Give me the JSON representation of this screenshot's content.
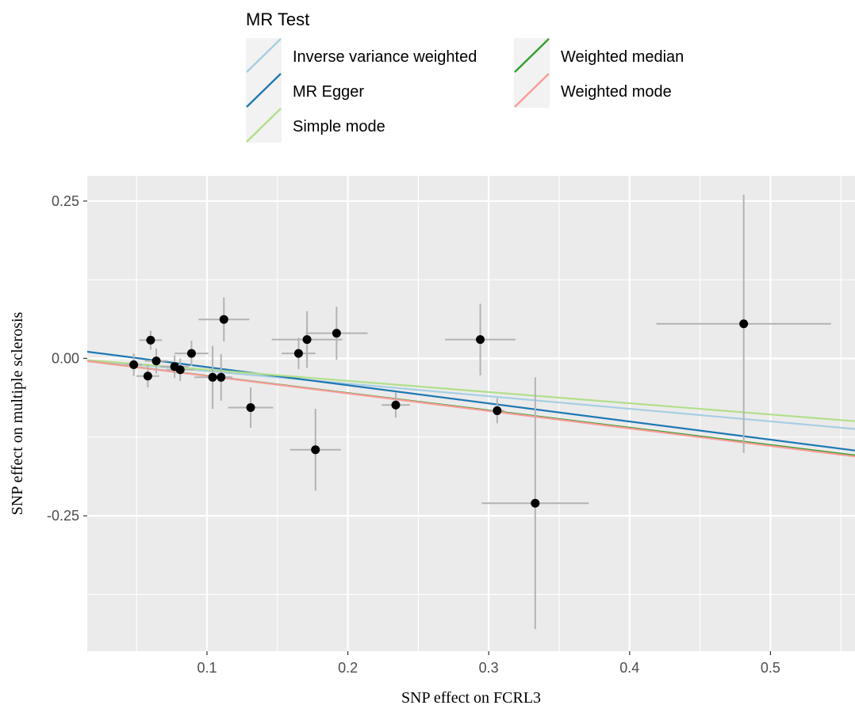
{
  "chart_data": {
    "type": "scatter",
    "xlabel": "SNP effect on FCRL3",
    "ylabel": "SNP effect on multiple sclerosis",
    "xlim": [
      0.015,
      0.56
    ],
    "ylim": [
      -0.465,
      0.29
    ],
    "x_ticks": [
      0.1,
      0.2,
      0.3,
      0.4,
      0.5
    ],
    "x_tick_labels": [
      "0.1",
      "0.2",
      "0.3",
      "0.4",
      "0.5"
    ],
    "y_ticks": [
      0.25,
      0.0,
      -0.25
    ],
    "y_tick_labels": [
      "0.25",
      "0.00",
      "-0.25"
    ],
    "grid": true,
    "legend": {
      "title": "MR Test",
      "position": "top",
      "items": [
        {
          "label": "Inverse variance weighted",
          "color": "#a6cee3"
        },
        {
          "label": "MR Egger",
          "color": "#1f78b4"
        },
        {
          "label": "Simple mode",
          "color": "#b2df8a"
        },
        {
          "label": "Weighted median",
          "color": "#33a02c"
        },
        {
          "label": "Weighted mode",
          "color": "#fb9a99"
        }
      ]
    },
    "points": [
      {
        "x": 0.048,
        "y": -0.01,
        "xerr": 0.006,
        "yerr": 0.018
      },
      {
        "x": 0.058,
        "y": -0.028,
        "xerr": 0.008,
        "yerr": 0.018
      },
      {
        "x": 0.06,
        "y": 0.029,
        "xerr": 0.008,
        "yerr": 0.015
      },
      {
        "x": 0.064,
        "y": -0.004,
        "xerr": 0.008,
        "yerr": 0.02
      },
      {
        "x": 0.077,
        "y": -0.013,
        "xerr": 0.01,
        "yerr": 0.018
      },
      {
        "x": 0.081,
        "y": -0.018,
        "xerr": 0.01,
        "yerr": 0.018
      },
      {
        "x": 0.089,
        "y": 0.008,
        "xerr": 0.012,
        "yerr": 0.02
      },
      {
        "x": 0.104,
        "y": -0.03,
        "xerr": 0.013,
        "yerr": 0.05
      },
      {
        "x": 0.11,
        "y": -0.03,
        "xerr": 0.008,
        "yerr": 0.037
      },
      {
        "x": 0.112,
        "y": 0.062,
        "xerr": 0.018,
        "yerr": 0.035
      },
      {
        "x": 0.131,
        "y": -0.078,
        "xerr": 0.016,
        "yerr": 0.032
      },
      {
        "x": 0.165,
        "y": 0.008,
        "xerr": 0.012,
        "yerr": 0.025
      },
      {
        "x": 0.171,
        "y": 0.03,
        "xerr": 0.025,
        "yerr": 0.045
      },
      {
        "x": 0.177,
        "y": -0.145,
        "xerr": 0.018,
        "yerr": 0.065
      },
      {
        "x": 0.192,
        "y": 0.04,
        "xerr": 0.022,
        "yerr": 0.042
      },
      {
        "x": 0.234,
        "y": -0.074,
        "xerr": 0.01,
        "yerr": 0.02
      },
      {
        "x": 0.294,
        "y": 0.03,
        "xerr": 0.025,
        "yerr": 0.057
      },
      {
        "x": 0.306,
        "y": -0.083,
        "xerr": 0.005,
        "yerr": 0.02
      },
      {
        "x": 0.333,
        "y": -0.23,
        "xerr": 0.038,
        "yerr": 0.2
      },
      {
        "x": 0.481,
        "y": 0.055,
        "xerr": 0.062,
        "yerr": 0.205
      }
    ],
    "lines": [
      {
        "name": "Inverse variance weighted",
        "color": "#a6cee3",
        "intercept": 0.0,
        "slope": -0.2
      },
      {
        "name": "MR Egger",
        "color": "#1f78b4",
        "intercept": 0.015,
        "slope": -0.288
      },
      {
        "name": "Simple mode",
        "color": "#b2df8a",
        "intercept": 0.0,
        "slope": -0.178
      },
      {
        "name": "Weighted median",
        "color": "#33a02c",
        "intercept": 0.0,
        "slope": -0.275
      },
      {
        "name": "Weighted mode",
        "color": "#fb9a99",
        "intercept": 0.0,
        "slope": -0.278
      }
    ]
  }
}
